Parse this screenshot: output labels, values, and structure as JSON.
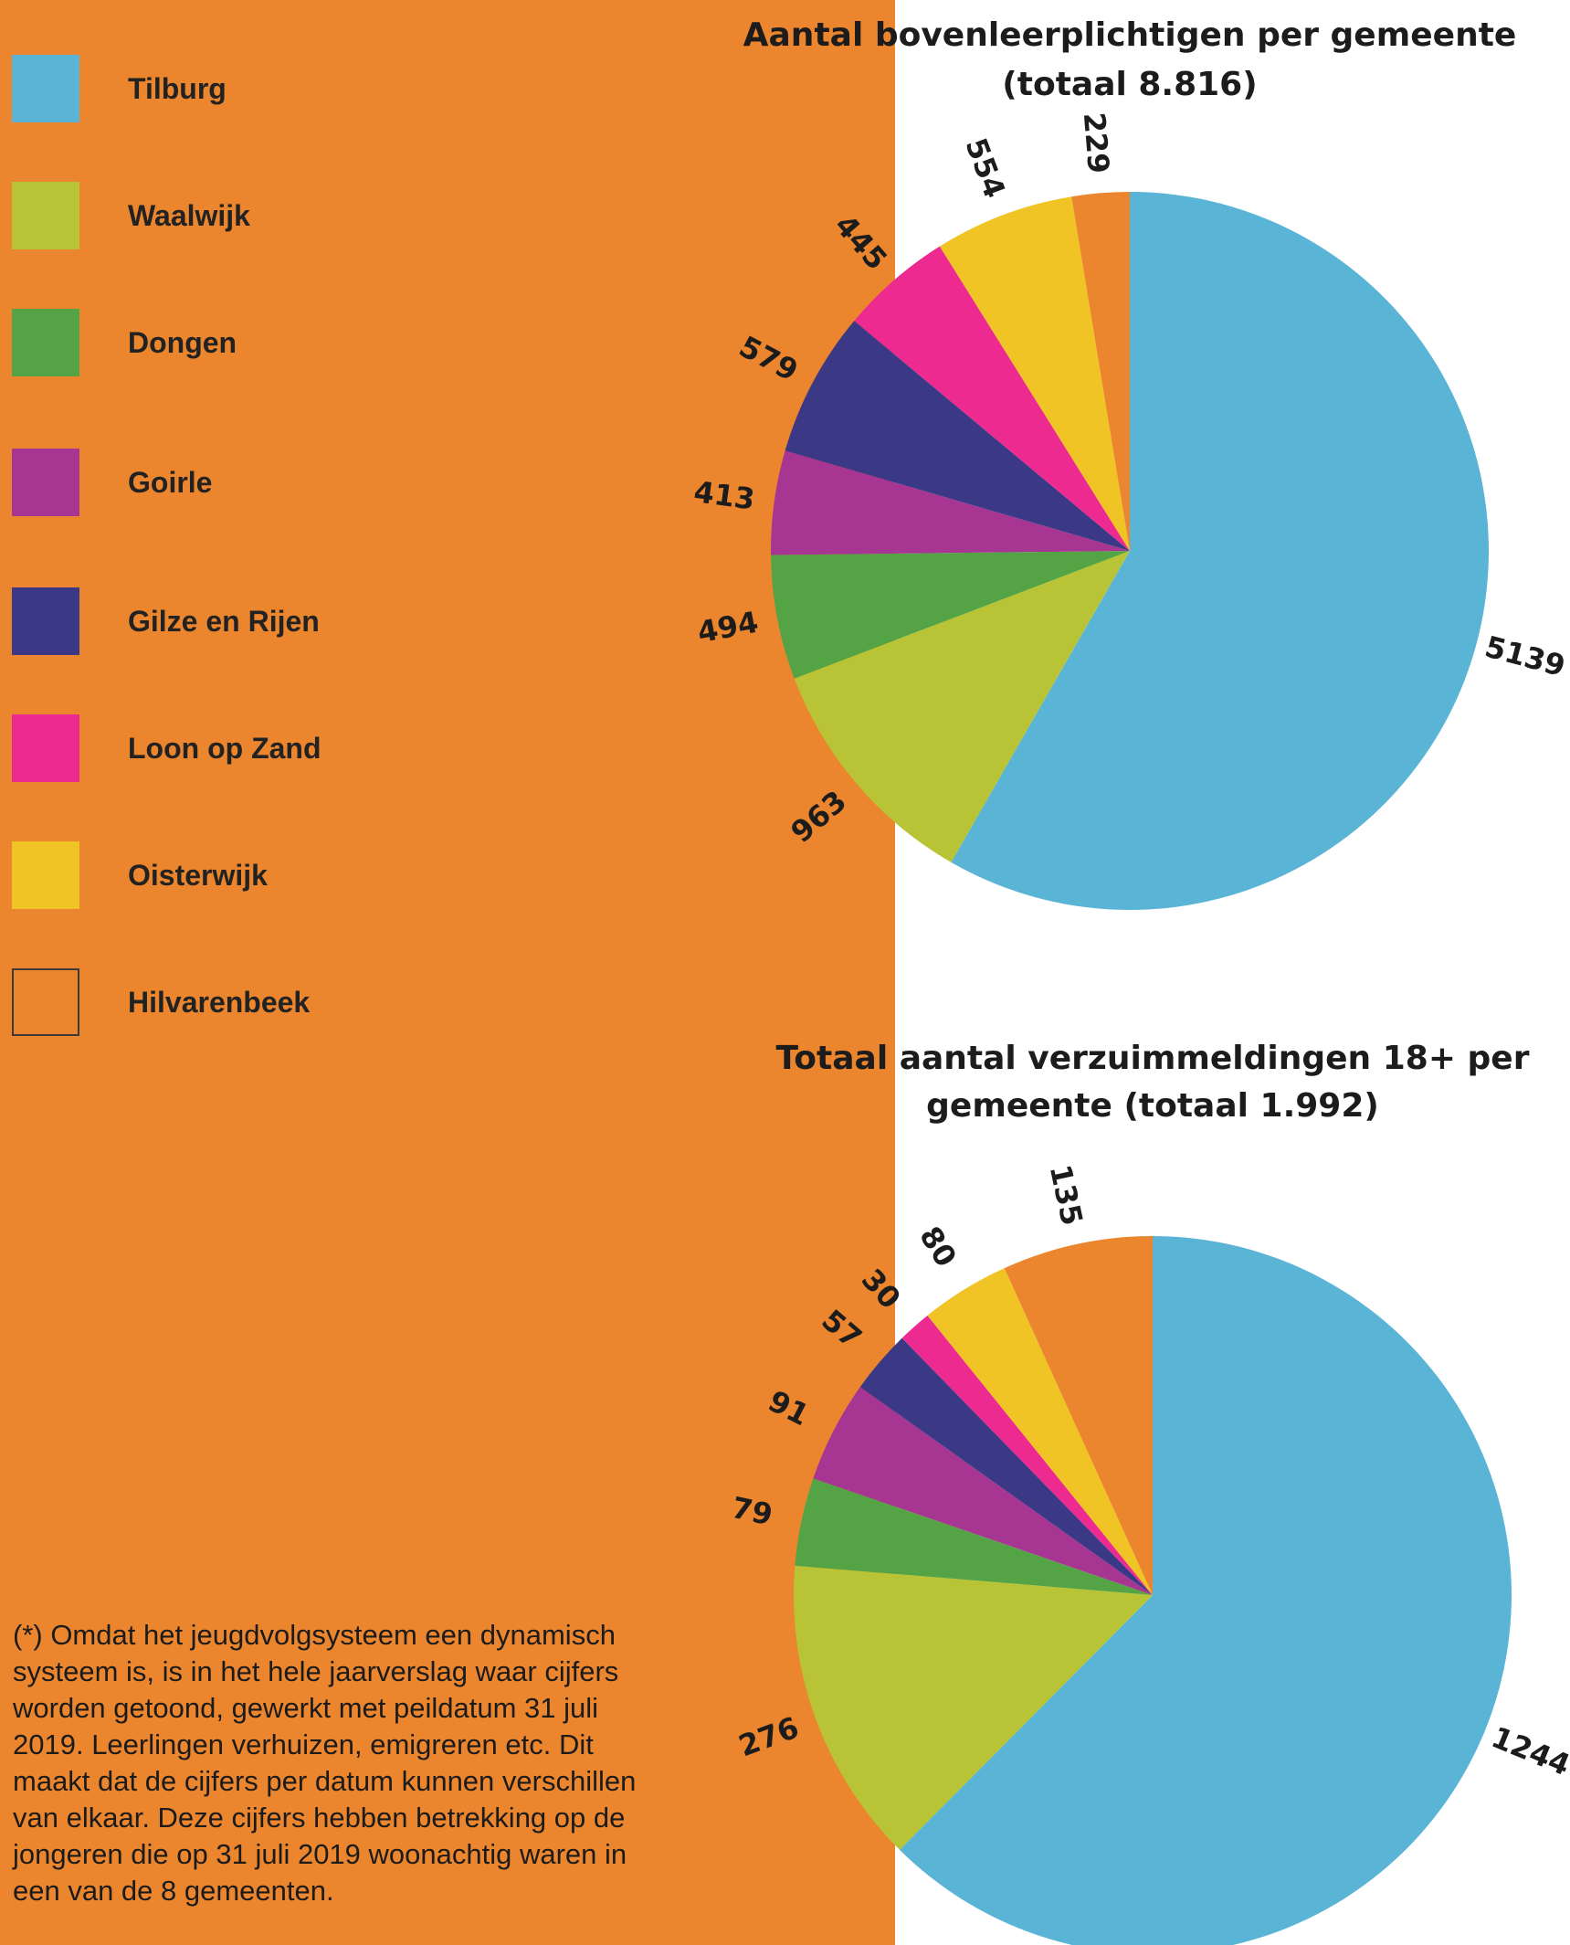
{
  "legend": {
    "items": [
      {
        "label": "Tilburg",
        "color": "#5ab4d6"
      },
      {
        "label": "Waalwijk",
        "color": "#b8c435"
      },
      {
        "label": "Dongen",
        "color": "#54a446"
      },
      {
        "label": "Goirle",
        "color": "#a73592"
      },
      {
        "label": "Gilze en Rijen",
        "color": "#3b3886"
      },
      {
        "label": "Loon op Zand",
        "color": "#ec2a8f"
      },
      {
        "label": "Oisterwijk",
        "color": "#f0c424"
      },
      {
        "label": "Hilvarenbeek",
        "color": "#ec862e"
      }
    ]
  },
  "chart_data": [
    {
      "type": "pie",
      "title": [
        "Aantal bovenleerplichtigen per gemeente",
        "(totaal 8.816)"
      ],
      "categories": [
        "Tilburg",
        "Waalwijk",
        "Dongen",
        "Goirle",
        "Gilze en Rijen",
        "Loon op Zand",
        "Oisterwijk",
        "Hilvarenbeek"
      ],
      "values": [
        5139,
        963,
        494,
        413,
        579,
        445,
        554,
        229
      ],
      "labels": [
        "5139",
        "963",
        "494",
        "413",
        "579",
        "445",
        "554",
        "229"
      ]
    },
    {
      "type": "pie",
      "title": [
        "Totaal aantal verzuimmeldingen 18+ per",
        "gemeente (totaal 1.992)"
      ],
      "categories": [
        "Tilburg",
        "Waalwijk",
        "Dongen",
        "Goirle",
        "Gilze en Rijen",
        "Loon op Zand",
        "Oisterwijk",
        "Hilvarenbeek"
      ],
      "values": [
        1244,
        276,
        79,
        91,
        57,
        30,
        80,
        135
      ],
      "labels": [
        "1244",
        "276",
        "79",
        "91",
        "57",
        "30",
        "80",
        "135"
      ]
    }
  ],
  "footnote": "(*) Omdat het jeugdvolgsysteem een dynamisch systeem is, is in het hele jaarverslag waar cijfers worden getoond, gewerkt met peildatum 31 juli 2019. Leerlingen verhuizen, emigreren etc. Dit maakt dat de cijfers per datum kunnen verschillen van elkaar. Deze cijfers hebben betrekking op de jongeren die op 31 juli 2019 woonachtig waren in een van de 8 gemeenten."
}
